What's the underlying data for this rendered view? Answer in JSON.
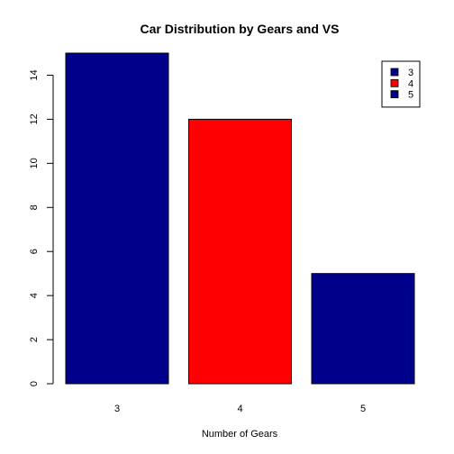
{
  "chart_data": {
    "type": "bar",
    "title": "Car Distribution by Gears and VS",
    "xlabel": "Number of Gears",
    "ylabel": "",
    "categories": [
      "3",
      "4",
      "5"
    ],
    "values": [
      15,
      12,
      5
    ],
    "bar_colors": [
      "#00008B",
      "#FF0000",
      "#00008B"
    ],
    "ylim": [
      0,
      15
    ],
    "yticks": [
      "0",
      "2",
      "4",
      "6",
      "8",
      "10",
      "12",
      "14"
    ],
    "grid": false,
    "legend": {
      "placement": "top-right",
      "entries": [
        {
          "label": "3",
          "color": "#00008B"
        },
        {
          "label": "4",
          "color": "#FF0000"
        },
        {
          "label": "5",
          "color": "#00008B"
        }
      ]
    }
  }
}
